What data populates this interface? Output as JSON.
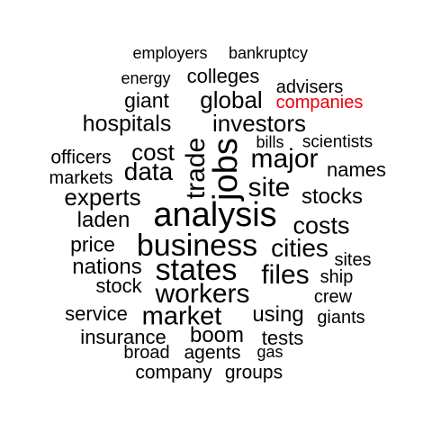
{
  "colors": {
    "default": "#000000",
    "highlight": "#e8000b"
  },
  "words": [
    {
      "text": "employers"
    },
    {
      "text": "bankruptcy"
    },
    {
      "text": "energy"
    },
    {
      "text": "colleges"
    },
    {
      "text": "advisers"
    },
    {
      "text": "giant"
    },
    {
      "text": "global"
    },
    {
      "text": "companies"
    },
    {
      "text": "hospitals"
    },
    {
      "text": "investors"
    },
    {
      "text": "bills"
    },
    {
      "text": "scientists"
    },
    {
      "text": "officers"
    },
    {
      "text": "cost"
    },
    {
      "text": "major"
    },
    {
      "text": "trade"
    },
    {
      "text": "jobs"
    },
    {
      "text": "markets"
    },
    {
      "text": "data"
    },
    {
      "text": "names"
    },
    {
      "text": "site"
    },
    {
      "text": "experts"
    },
    {
      "text": "stocks"
    },
    {
      "text": "analysis"
    },
    {
      "text": "laden"
    },
    {
      "text": "costs"
    },
    {
      "text": "price"
    },
    {
      "text": "business"
    },
    {
      "text": "cities"
    },
    {
      "text": "sites"
    },
    {
      "text": "nations"
    },
    {
      "text": "states"
    },
    {
      "text": "files"
    },
    {
      "text": "ship"
    },
    {
      "text": "stock"
    },
    {
      "text": "workers"
    },
    {
      "text": "crew"
    },
    {
      "text": "service"
    },
    {
      "text": "market"
    },
    {
      "text": "using"
    },
    {
      "text": "giants"
    },
    {
      "text": "insurance"
    },
    {
      "text": "boom"
    },
    {
      "text": "tests"
    },
    {
      "text": "broad"
    },
    {
      "text": "agents"
    },
    {
      "text": "gas"
    },
    {
      "text": "company"
    },
    {
      "text": "groups"
    }
  ]
}
